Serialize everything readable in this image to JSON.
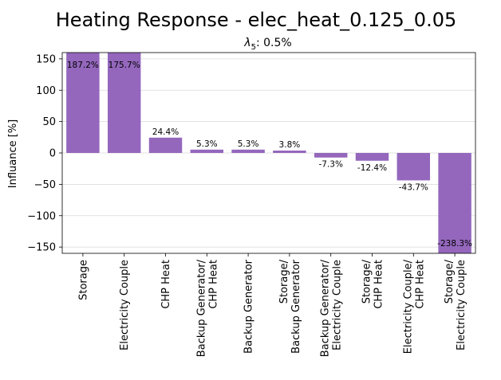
{
  "chart_data": {
    "type": "bar",
    "title": "Heating Response - elec_heat_0.125_0.05",
    "subtitle_symbol": "λ",
    "subtitle_subscript": "5",
    "subtitle_value": ": 0.5%",
    "xlabel": "",
    "ylabel": "Influance [%]",
    "ylim": [
      -160,
      160
    ],
    "yticks": [
      -150,
      -100,
      -50,
      0,
      50,
      100,
      150
    ],
    "ytick_labels": [
      "−150",
      "−100",
      "−50",
      "0",
      "50",
      "100",
      "150"
    ],
    "grid": "horizontal",
    "bar_color": "#9467bd",
    "categories": [
      [
        "Storage"
      ],
      [
        "Electricity Couple"
      ],
      [
        "CHP Heat"
      ],
      [
        "Backup Generator/",
        "CHP Heat"
      ],
      [
        "Backup Generator"
      ],
      [
        "Storage/",
        "Backup Generator"
      ],
      [
        "Backup Generator/",
        "Electricity Couple"
      ],
      [
        "Storage/",
        "CHP Heat"
      ],
      [
        "Electricity Couple/",
        "CHP Heat"
      ],
      [
        "Storage/",
        "Electricity Couple"
      ]
    ],
    "values": [
      187.2,
      175.7,
      24.4,
      5.3,
      5.3,
      3.8,
      -7.3,
      -12.4,
      -43.7,
      -238.3
    ],
    "value_labels": [
      "187.2%",
      "175.7%",
      "24.4%",
      "5.3%",
      "5.3%",
      "3.8%",
      "-7.3%",
      "-12.4%",
      "-43.7%",
      "-238.3%"
    ]
  }
}
